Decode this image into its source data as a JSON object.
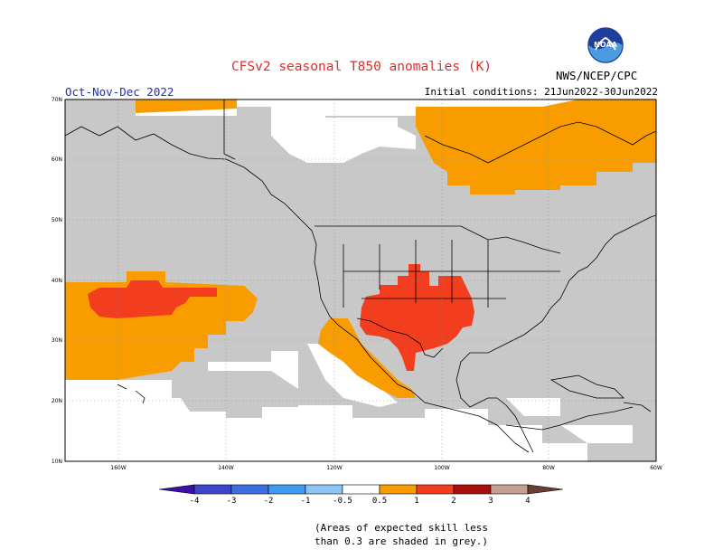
{
  "header": {
    "title": "CFSv2 seasonal T850 anomalies (K)",
    "season": "Oct-Nov-Dec 2022",
    "initial_conditions": "Initial conditions: 21Jun2022-30Jun2022",
    "agency": "NWS/NCEP/CPC",
    "logo_text": "NOAA"
  },
  "map": {
    "lat_labels": [
      "70N",
      "60N",
      "50N",
      "40N",
      "30N",
      "20N",
      "10N"
    ],
    "lon_labels": [
      "160W",
      "140W",
      "120W",
      "100W",
      "80W",
      "60W"
    ]
  },
  "colorbar": {
    "ticks": [
      "-4",
      "-3",
      "-2",
      "-1",
      "-0.5",
      "0.5",
      "1",
      "2",
      "3",
      "4"
    ],
    "colors": {
      "lt_m4": "#3a10a8",
      "m4_m3": "#3d46c8",
      "m3_m2": "#3b6fe0",
      "m2_m1": "#3e9bef",
      "m1_m05": "#8cc5f5",
      "neutral": "#ffffff",
      "p05_p1": "#f89c00",
      "p1_p2": "#f23e1e",
      "p2_p3": "#a70f0c",
      "p3_p4": "#c5a094",
      "gt_p4": "#6a3e35"
    },
    "grey": "#c8c8c8"
  },
  "footnote": {
    "line1": "(Areas of expected skill less",
    "line2": "than 0.3 are shaded in grey.)"
  }
}
